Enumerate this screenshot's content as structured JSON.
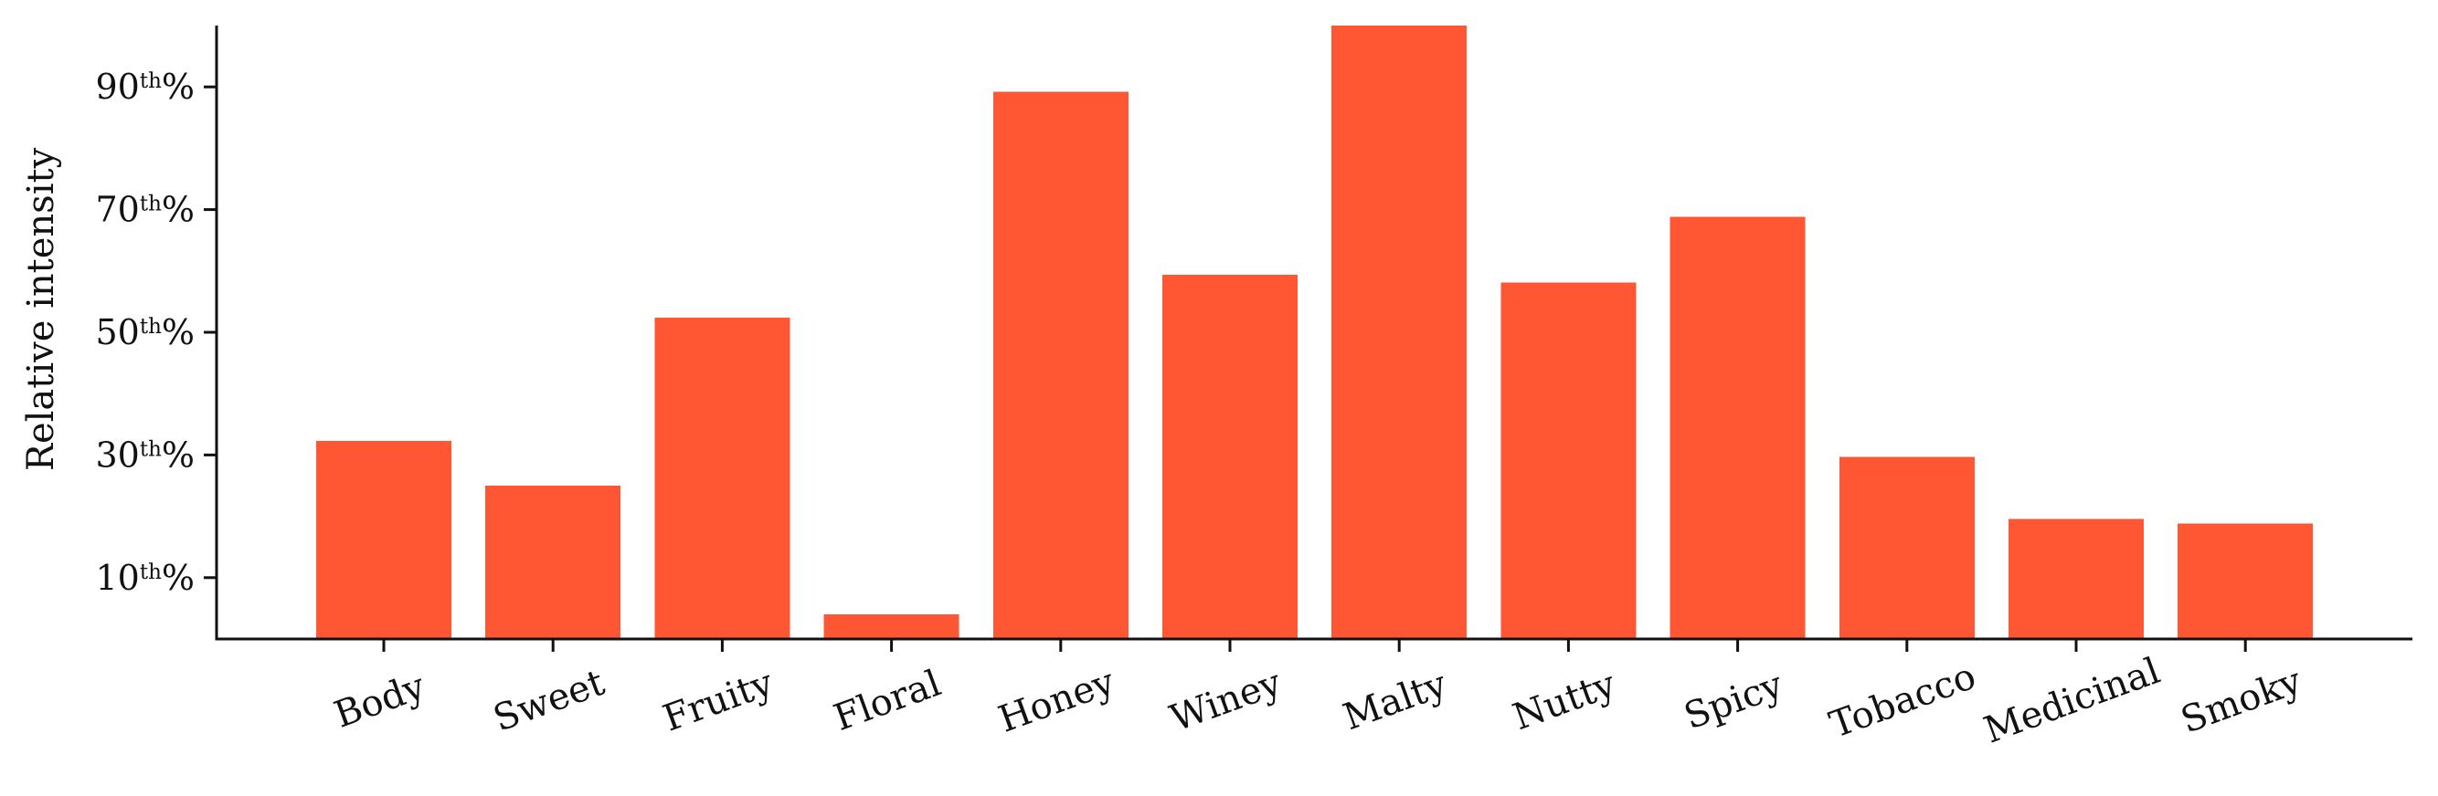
{
  "chart_data": {
    "type": "bar",
    "title": "",
    "xlabel": "",
    "ylabel": "Relative intensity",
    "categories": [
      "Body",
      "Sweet",
      "Fruity",
      "Floral",
      "Honey",
      "Winey",
      "Malty",
      "Nutty",
      "Spicy",
      "Tobacco",
      "Medicinal",
      "Smoky"
    ],
    "values": [
      32.3,
      25.0,
      52.4,
      4.0,
      89.2,
      59.4,
      100.0,
      58.1,
      68.8,
      29.7,
      19.6,
      18.8
    ],
    "ylim": [
      0,
      100
    ],
    "yticks": [
      {
        "value": 10,
        "num": "10",
        "sup": "th",
        "suffix": "%"
      },
      {
        "value": 30,
        "num": "30",
        "sup": "th",
        "suffix": "%"
      },
      {
        "value": 50,
        "num": "50",
        "sup": "th",
        "suffix": "%"
      },
      {
        "value": 70,
        "num": "70",
        "sup": "th",
        "suffix": "%"
      },
      {
        "value": 90,
        "num": "90",
        "sup": "th",
        "suffix": "%"
      }
    ],
    "bar_color": "#ff5733",
    "grid": false,
    "legend": "none",
    "spines": "left-bottom"
  }
}
